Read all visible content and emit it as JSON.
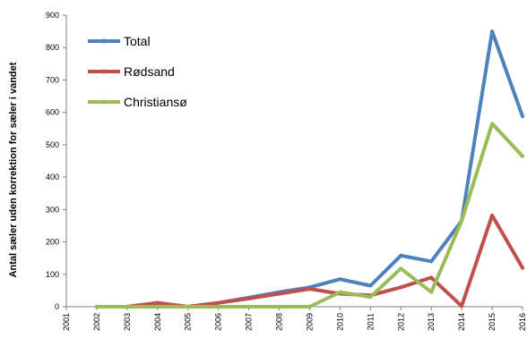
{
  "chart_data": {
    "type": "line",
    "title": "",
    "xlabel": "",
    "ylabel": "Antal sæler uden korrektion for sæler i vandet",
    "categories": [
      "2001",
      "2002",
      "2003",
      "2004",
      "2005",
      "2006",
      "2007",
      "2008",
      "2009",
      "2010",
      "2011",
      "2012",
      "2013",
      "2014",
      "2015",
      "2016"
    ],
    "ylim": [
      0,
      900
    ],
    "yticks": [
      0,
      100,
      200,
      300,
      400,
      500,
      600,
      700,
      800,
      900
    ],
    "grid": false,
    "legend_position": "top-left",
    "series": [
      {
        "name": "Total",
        "color": "#4f81bd",
        "values": [
          null,
          0,
          0,
          12,
          0,
          12,
          28,
          45,
          60,
          85,
          65,
          158,
          140,
          265,
          850,
          588
        ]
      },
      {
        "name": "Rødsand",
        "color": "#c0504d",
        "values": [
          null,
          0,
          0,
          12,
          0,
          12,
          25,
          40,
          55,
          40,
          35,
          60,
          90,
          2,
          282,
          120
        ]
      },
      {
        "name": "Christiansø",
        "color": "#9bbb59",
        "values": [
          null,
          0,
          0,
          0,
          0,
          0,
          0,
          0,
          0,
          45,
          30,
          118,
          45,
          265,
          565,
          465
        ]
      }
    ]
  }
}
